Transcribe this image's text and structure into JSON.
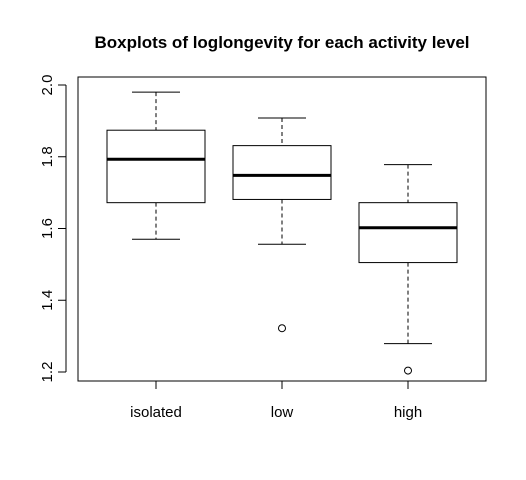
{
  "chart_data": {
    "type": "box",
    "title": "Boxplots of loglongevity for each activity level",
    "xlabel": "",
    "ylabel": "",
    "categories": [
      "isolated",
      "low",
      "high"
    ],
    "ylim": [
      1.2,
      2.0
    ],
    "y_ticks": [
      1.2,
      1.4,
      1.6,
      1.8,
      2.0
    ],
    "y_tick_labels": [
      "1.2",
      "1.4",
      "1.6",
      "1.8",
      "2.0"
    ],
    "grid": false,
    "boxes": [
      {
        "category": "isolated",
        "whisker_low": 1.57,
        "q1": 1.672,
        "median": 1.793,
        "q3": 1.874,
        "whisker_high": 1.98,
        "outliers": []
      },
      {
        "category": "low",
        "whisker_low": 1.556,
        "q1": 1.681,
        "median": 1.748,
        "q3": 1.831,
        "whisker_high": 1.908,
        "outliers": [
          1.322
        ]
      },
      {
        "category": "high",
        "whisker_low": 1.279,
        "q1": 1.505,
        "median": 1.602,
        "q3": 1.672,
        "whisker_high": 1.778,
        "outliers": [
          1.204
        ]
      }
    ]
  }
}
